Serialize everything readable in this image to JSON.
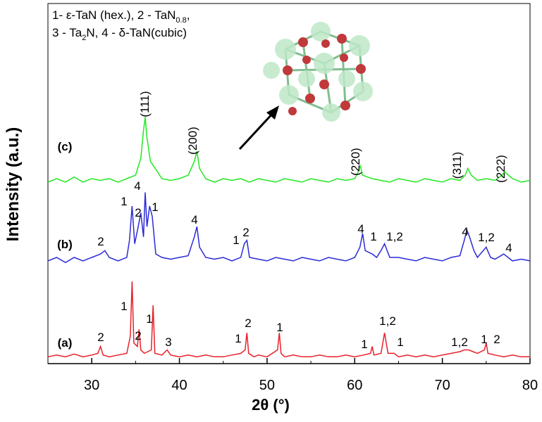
{
  "chart_data": {
    "type": "line",
    "x_label": "2θ (°)",
    "y_label": "Intensity (a.u.)",
    "legend_text": [
      [
        "1- ε-TaN (hex.), 2 - TaN",
        "0.8",
        ","
      ],
      [
        "3 - Ta",
        "2",
        "N, 4 - δ-TaN(cubic)"
      ]
    ],
    "xlim": [
      25,
      80
    ],
    "xticks": [
      30,
      40,
      50,
      60,
      70,
      80
    ],
    "xminorticks": [
      35,
      45,
      55,
      65,
      75
    ],
    "ylim": [
      0,
      100
    ],
    "series": [
      {
        "name": "(a)",
        "color": "#e8202a",
        "x": [
          25,
          26,
          27,
          28,
          29,
          30,
          30.7,
          31,
          31.3,
          32,
          33,
          34,
          34.4,
          34.6,
          34.8,
          35.2,
          35.4,
          35.6,
          36,
          36.8,
          37,
          37.2,
          38,
          38.6,
          39,
          40,
          41,
          42,
          43,
          44,
          45,
          46,
          47,
          47.5,
          47.7,
          47.9,
          48.5,
          49,
          50,
          51.2,
          51.4,
          51.6,
          52,
          53,
          54,
          55,
          56,
          57,
          58,
          59,
          60,
          61,
          61.8,
          62,
          62.2,
          63,
          63.4,
          63.8,
          64.5,
          65,
          66,
          67,
          68,
          69,
          70,
          71,
          72,
          72.5,
          73,
          73.5,
          74,
          74.8,
          75,
          75.2,
          76,
          77,
          78,
          79,
          80
        ],
        "values": [
          2,
          2.5,
          2,
          2.8,
          2,
          2.5,
          3,
          5,
          2.5,
          2,
          2.5,
          3,
          8,
          24,
          6,
          5,
          10,
          4,
          3,
          4,
          17,
          3,
          2.5,
          4,
          2.5,
          2,
          2.5,
          2,
          2.5,
          2,
          2,
          2.5,
          3,
          4,
          9,
          3,
          2,
          2.5,
          2,
          4,
          9,
          3,
          2,
          2.5,
          2,
          2,
          2.5,
          2,
          2,
          2.5,
          2,
          2.5,
          3,
          5,
          2.5,
          3,
          9,
          3,
          3,
          2,
          2.5,
          2,
          2.5,
          2,
          2.5,
          3,
          3.5,
          4,
          4,
          3.5,
          3,
          4,
          6,
          3,
          2.5,
          2,
          2.5,
          2,
          2
        ],
        "peak_labels": [
          "2",
          "1",
          "2",
          "1",
          "3",
          "1",
          "2",
          "1",
          "1",
          "1,2",
          "1",
          "1,2",
          "1",
          "2"
        ]
      },
      {
        "name": "(b)",
        "color": "#2a2ad8",
        "x": [
          25,
          26,
          27,
          28,
          29,
          30,
          31,
          31.5,
          32,
          33,
          34,
          34.3,
          34.6,
          34.9,
          35.3,
          35.6,
          35.9,
          36.1,
          36.3,
          36.6,
          36.9,
          37.3,
          38,
          39,
          40,
          41,
          41.7,
          42,
          42.3,
          43,
          44,
          45,
          46,
          47,
          47.4,
          47.7,
          48,
          49,
          50,
          51,
          52,
          53,
          54,
          55,
          56,
          57,
          58,
          59,
          60,
          60.6,
          60.9,
          61.2,
          62,
          62.5,
          63,
          63.4,
          64,
          65,
          66,
          67,
          68,
          69,
          70,
          71,
          72,
          72.5,
          72.8,
          73.1,
          73.6,
          74,
          75,
          75.5,
          76,
          77,
          78,
          79,
          80
        ],
        "values": [
          30,
          31,
          29.5,
          31,
          30,
          31,
          32,
          33,
          31,
          30,
          31,
          36,
          46,
          35,
          40,
          44,
          37,
          50,
          40,
          46,
          43,
          32,
          31,
          30.5,
          31,
          31.5,
          37,
          40,
          34,
          31,
          30.5,
          31,
          30,
          31,
          35,
          36,
          31,
          30.5,
          30,
          31,
          30.5,
          30,
          31,
          30.5,
          30,
          31,
          30.5,
          30,
          31,
          34,
          38,
          33,
          32,
          31,
          33,
          35,
          31,
          31,
          30.5,
          30,
          31,
          30.5,
          30,
          31,
          31.5,
          36,
          39,
          37,
          33,
          31,
          34,
          31,
          30.5,
          32,
          30,
          30.5,
          30
        ],
        "peak_labels": [
          "2",
          "1",
          "4",
          "2",
          "1",
          "4",
          "1",
          "2",
          "4",
          "1",
          "1,2",
          "4",
          "1,2",
          "4"
        ]
      },
      {
        "name": "(c)",
        "color": "#22e822",
        "x": [
          25,
          26,
          27,
          28,
          29,
          30,
          31,
          32,
          33,
          34,
          35,
          35.6,
          35.9,
          36.1,
          36.3,
          36.7,
          37.5,
          38,
          39,
          40,
          41,
          41.7,
          42,
          42.3,
          43,
          44,
          45,
          46,
          47,
          48,
          49,
          50,
          51,
          52,
          53,
          54,
          55,
          56,
          57,
          58,
          59,
          60,
          60.4,
          60.6,
          60.9,
          62,
          63,
          64,
          65,
          66,
          67,
          68,
          69,
          70,
          71,
          72,
          72.6,
          72.9,
          73.3,
          74,
          75,
          76,
          76.8,
          77.1,
          78,
          79,
          80
        ],
        "values": [
          53,
          54,
          53,
          54.5,
          53,
          54,
          53.5,
          54,
          53,
          54,
          55,
          60,
          68,
          72,
          66,
          59,
          56,
          54,
          53.5,
          54,
          55,
          59,
          62,
          57,
          54,
          53,
          54,
          53.5,
          54,
          53,
          54,
          53.5,
          53,
          54,
          53.5,
          53,
          54,
          53.5,
          53,
          54,
          53.5,
          54,
          56,
          58,
          55,
          54,
          53.5,
          53,
          54,
          53.5,
          53,
          54,
          53.5,
          53,
          54,
          53.5,
          55,
          57,
          55,
          53.5,
          54,
          53.5,
          55,
          56,
          54,
          53,
          53.5
        ],
        "peak_labels": [
          "(111)",
          "(200)",
          "(220)",
          "(311)",
          "(222)"
        ]
      }
    ]
  }
}
